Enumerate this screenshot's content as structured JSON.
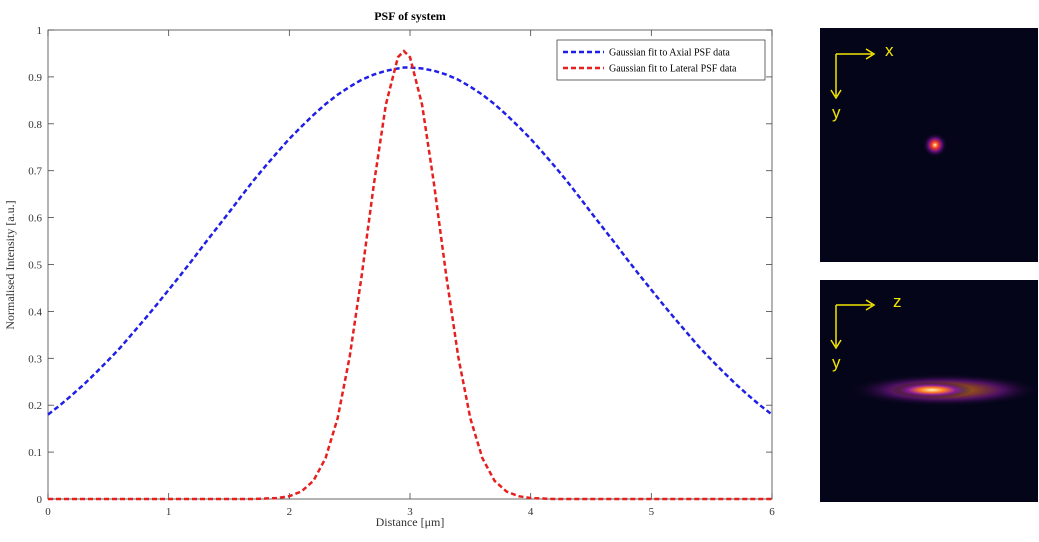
{
  "chart_data": {
    "type": "line",
    "title": "PSF of system",
    "xlabel": "Distance [μm]",
    "ylabel": "Normalised Intensity [a.u.]",
    "x": [
      0,
      0.1,
      0.2,
      0.3,
      0.4,
      0.5,
      0.6,
      0.7,
      0.8,
      0.9,
      1.0,
      1.1,
      1.2,
      1.3,
      1.4,
      1.5,
      1.6,
      1.7,
      1.8,
      1.9,
      2.0,
      2.1,
      2.2,
      2.3,
      2.4,
      2.5,
      2.6,
      2.7,
      2.8,
      2.9,
      2.95,
      3.0,
      3.1,
      3.2,
      3.3,
      3.4,
      3.5,
      3.6,
      3.7,
      3.8,
      3.9,
      4.0,
      4.1,
      4.2,
      4.3,
      4.4,
      4.5,
      4.6,
      4.7,
      4.8,
      4.9,
      5.0,
      5.1,
      5.2,
      5.3,
      5.4,
      5.5,
      5.6,
      5.7,
      5.8,
      5.9,
      6.0
    ],
    "series": [
      {
        "name": "Gaussian fit to Axial PSF data",
        "color": "#1f1fe6",
        "values": [
          0.18,
          0.2,
          0.222,
          0.245,
          0.27,
          0.296,
          0.323,
          0.353,
          0.383,
          0.414,
          0.446,
          0.478,
          0.511,
          0.545,
          0.578,
          0.611,
          0.645,
          0.678,
          0.709,
          0.739,
          0.768,
          0.794,
          0.819,
          0.842,
          0.862,
          0.879,
          0.894,
          0.905,
          0.913,
          0.918,
          0.92,
          0.92,
          0.918,
          0.913,
          0.905,
          0.894,
          0.879,
          0.862,
          0.842,
          0.819,
          0.794,
          0.768,
          0.739,
          0.709,
          0.678,
          0.645,
          0.611,
          0.578,
          0.545,
          0.511,
          0.478,
          0.446,
          0.414,
          0.383,
          0.353,
          0.323,
          0.296,
          0.27,
          0.245,
          0.222,
          0.2,
          0.18
        ]
      },
      {
        "name": "Gaussian fit to Lateral PSF data",
        "color": "#e61f1f",
        "values": [
          0,
          0,
          0,
          0,
          0,
          0,
          0,
          0,
          0,
          0,
          0,
          0,
          0,
          0,
          0,
          0,
          0,
          0,
          0.001,
          0.002,
          0.006,
          0.016,
          0.039,
          0.087,
          0.172,
          0.303,
          0.477,
          0.67,
          0.841,
          0.942,
          0.955,
          0.942,
          0.841,
          0.67,
          0.477,
          0.303,
          0.172,
          0.087,
          0.039,
          0.016,
          0.006,
          0.002,
          0.001,
          0,
          0,
          0,
          0,
          0,
          0,
          0,
          0,
          0,
          0,
          0,
          0,
          0,
          0,
          0,
          0,
          0,
          0,
          0
        ]
      }
    ],
    "xlim": [
      0,
      6
    ],
    "xticks": [
      0,
      1,
      2,
      3,
      4,
      5,
      6
    ],
    "ylim": [
      0,
      1
    ],
    "yticks": [
      0,
      0.1,
      0.2,
      0.3,
      0.4,
      0.5,
      0.6,
      0.7,
      0.8,
      0.9,
      1
    ],
    "grid": false,
    "legend": "upper right"
  },
  "insets": [
    {
      "x_axis": "x",
      "y_axis": "y"
    },
    {
      "x_axis": "z",
      "y_axis": "y"
    }
  ]
}
